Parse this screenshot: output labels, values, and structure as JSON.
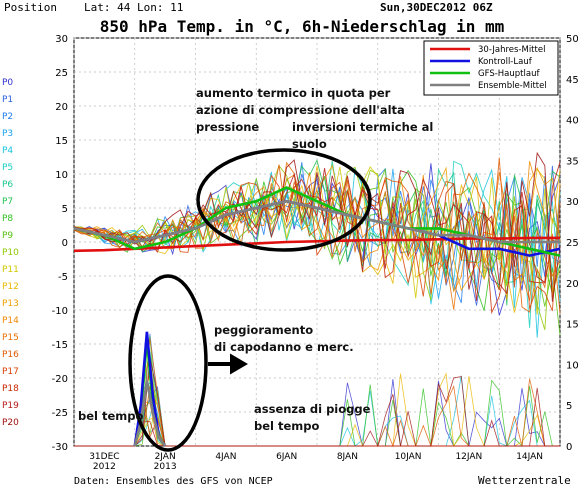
{
  "header": {
    "position_label": "Position",
    "lat_lon": "Lat: 44  Lon: 11",
    "date_run": "Sun,30DEC2012 06Z",
    "title": "850 hPa Temp. in °C, 6h-Niederschlag in mm"
  },
  "footer": {
    "source": "Daten: Ensembles des GFS von NCEP",
    "brand": "Wetterzentrale"
  },
  "member_labels": [
    "P0",
    "P1",
    "P2",
    "P3",
    "P4",
    "P5",
    "P6",
    "P7",
    "P8",
    "P9",
    "P10",
    "P11",
    "P12",
    "P13",
    "P14",
    "P15",
    "P16",
    "P17",
    "P18",
    "P19",
    "P20"
  ],
  "member_colors": [
    "#3030d0",
    "#2a5fe0",
    "#1f7ef0",
    "#1aa3f0",
    "#19c3e0",
    "#18cfc0",
    "#1ac890",
    "#20c050",
    "#30c020",
    "#58c010",
    "#90c800",
    "#d0c800",
    "#e8b800",
    "#f0a000",
    "#f08800",
    "#e87000",
    "#e05a00",
    "#d84000",
    "#c82800",
    "#b81818",
    "#a01010"
  ],
  "annotations": {
    "warm_advection": "aumento termico in quota per azione di compressione dell'alta pressione",
    "inversions": "inversioni termiche al suolo",
    "worsening": "peggioramento di capodanno e merc.",
    "fair_weather_left": "bel tempo",
    "no_rain": "assenza di piogge bel tempo"
  },
  "chart_data": {
    "type": "line",
    "x_tick_labels": [
      "31DEC 2012",
      "2JAN 2013",
      "4JAN",
      "6JAN",
      "8JAN",
      "10JAN",
      "12JAN",
      "14JAN"
    ],
    "x_range_days": [
      0,
      16
    ],
    "y_left": {
      "label": "",
      "ticks": [
        30,
        25,
        20,
        15,
        10,
        5,
        0,
        -5,
        -10,
        -15,
        -20,
        -25,
        -30
      ],
      "range": [
        -30,
        30
      ],
      "unit": "°C"
    },
    "y_right": {
      "label": "",
      "ticks": [
        50,
        45,
        40,
        35,
        30,
        25,
        20,
        15,
        10,
        5,
        0
      ],
      "range": [
        0,
        50
      ],
      "unit": "mm"
    },
    "legend": {
      "placement": "top-right",
      "entries": [
        {
          "name": "30-Jahres-Mittel",
          "color": "#e01010"
        },
        {
          "name": "Kontroll-Lauf",
          "color": "#1010e0"
        },
        {
          "name": "GFS-Hauptlauf",
          "color": "#10c010"
        },
        {
          "name": "Ensemble-Mittel",
          "color": "#808080"
        }
      ]
    },
    "series": [
      {
        "name": "30-Jahres-Mittel",
        "x": [
          0,
          1,
          2,
          3,
          4,
          5,
          6,
          7,
          8,
          9,
          10,
          11,
          12,
          13,
          14,
          15,
          16
        ],
        "values": [
          -1.3,
          -1.2,
          -1.0,
          -0.8,
          -0.6,
          -0.4,
          -0.2,
          0.0,
          0.1,
          0.2,
          0.3,
          0.3,
          0.4,
          0.5,
          0.5,
          0.6,
          0.6
        ]
      },
      {
        "name": "Kontroll-Lauf",
        "x": [
          0,
          1,
          2,
          3,
          4,
          5,
          6,
          7,
          8,
          9,
          10,
          11,
          12,
          13,
          14,
          15,
          16
        ],
        "values": [
          2,
          1,
          0,
          1,
          2,
          4,
          5,
          6,
          5,
          4,
          3,
          2,
          1,
          -1,
          -1,
          -2,
          -1
        ]
      },
      {
        "name": "GFS-Hauptlauf",
        "x": [
          0,
          1,
          2,
          3,
          4,
          5,
          6,
          7,
          8,
          9,
          10,
          11,
          12,
          13,
          14,
          15,
          16
        ],
        "values": [
          2,
          1,
          -1,
          0,
          2,
          5,
          6,
          8,
          6,
          4,
          3,
          2,
          2,
          1,
          0,
          -1,
          -2
        ]
      },
      {
        "name": "Ensemble-Mittel",
        "x": [
          0,
          1,
          2,
          3,
          4,
          5,
          6,
          7,
          8,
          9,
          10,
          11,
          12,
          13,
          14,
          15,
          16
        ],
        "values": [
          2,
          1,
          0,
          1,
          2,
          4,
          5,
          6,
          5,
          4,
          3,
          2,
          1,
          1,
          0,
          0,
          0
        ]
      }
    ],
    "precipitation_series": [
      {
        "name": "GFS-Hauptlauf",
        "x": [
          2,
          2.2,
          2.4,
          2.6,
          2.8,
          3.0
        ],
        "values": [
          0,
          4,
          13,
          5,
          1,
          0
        ]
      },
      {
        "name": "Kontroll-Lauf",
        "x": [
          2,
          2.2,
          2.4,
          2.6,
          2.8,
          3.0
        ],
        "values": [
          0,
          5,
          14,
          6,
          1,
          0
        ]
      },
      {
        "name": "Ensemble-Mittel",
        "x": [
          2,
          2.2,
          2.4,
          2.6,
          2.8,
          3.0
        ],
        "values": [
          0,
          3,
          8,
          4,
          1,
          0
        ]
      }
    ],
    "grid": true
  }
}
